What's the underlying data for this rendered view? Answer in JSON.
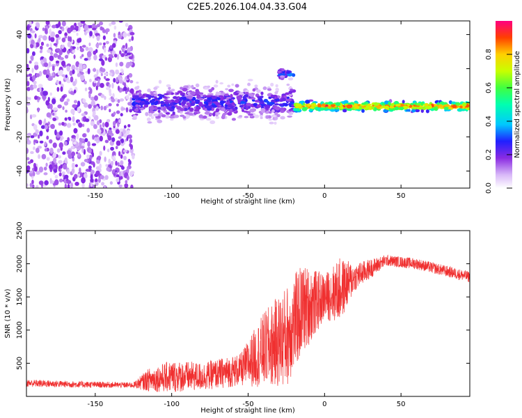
{
  "title": "C2E5.2026.104.04.33.G04",
  "chart_data": [
    {
      "type": "heatmap",
      "name": "spectrogram",
      "xlabel": "Height of straight line (km)",
      "ylabel": "Frequency (Hz)",
      "xlim": [
        -195,
        95
      ],
      "ylim": [
        -50,
        48
      ],
      "xticks": [
        -150,
        -100,
        -50,
        0,
        50
      ],
      "yticks": [
        -40,
        -20,
        0,
        20,
        40
      ],
      "colorbar": {
        "label": "Normalized spectral amplitude",
        "range": [
          0,
          1
        ],
        "ticks": [
          0.0,
          0.2,
          0.4,
          0.6,
          0.8
        ]
      },
      "features": [
        {
          "region": "diffuse noise",
          "x_range": [
            -195,
            -125
          ],
          "freq_range": [
            -50,
            48
          ],
          "amplitude": 0.1
        },
        {
          "region": "noisy tracking",
          "x_range": [
            -125,
            -20
          ],
          "freq_center": 0,
          "freq_width": 12,
          "amplitude": 0.25
        },
        {
          "region": "side lobe",
          "x_range": [
            -30,
            -20
          ],
          "freq_center": 17,
          "amplitude": 0.3
        },
        {
          "region": "clean tracking",
          "x_range": [
            -20,
            95
          ],
          "freq_center": -2,
          "amplitude": 0.9
        }
      ]
    },
    {
      "type": "line",
      "name": "snr",
      "xlabel": "Height of straight line (km)",
      "ylabel": "SNR (10 * v/v)",
      "xlim": [
        -195,
        95
      ],
      "ylim": [
        0,
        2500
      ],
      "xticks": [
        -150,
        -100,
        -50,
        0,
        50
      ],
      "yticks": [
        500,
        1000,
        1500,
        2000,
        2500
      ],
      "color": "#f03030",
      "envelope": [
        {
          "x": -195,
          "mean": 200,
          "noise": 80
        },
        {
          "x": -160,
          "mean": 180,
          "noise": 70
        },
        {
          "x": -125,
          "mean": 170,
          "noise": 60
        },
        {
          "x": -115,
          "mean": 250,
          "noise": 250
        },
        {
          "x": -100,
          "mean": 300,
          "noise": 350
        },
        {
          "x": -80,
          "mean": 300,
          "noise": 300
        },
        {
          "x": -55,
          "mean": 400,
          "noise": 350
        },
        {
          "x": -40,
          "mean": 700,
          "noise": 800
        },
        {
          "x": -25,
          "mean": 900,
          "noise": 1100
        },
        {
          "x": -15,
          "mean": 1300,
          "noise": 1000
        },
        {
          "x": 0,
          "mean": 1500,
          "noise": 500
        },
        {
          "x": 10,
          "mean": 1600,
          "noise": 700
        },
        {
          "x": 20,
          "mean": 1800,
          "noise": 300
        },
        {
          "x": 40,
          "mean": 2050,
          "noise": 120
        },
        {
          "x": 60,
          "mean": 2000,
          "noise": 120
        },
        {
          "x": 95,
          "mean": 1800,
          "noise": 120
        }
      ]
    }
  ]
}
